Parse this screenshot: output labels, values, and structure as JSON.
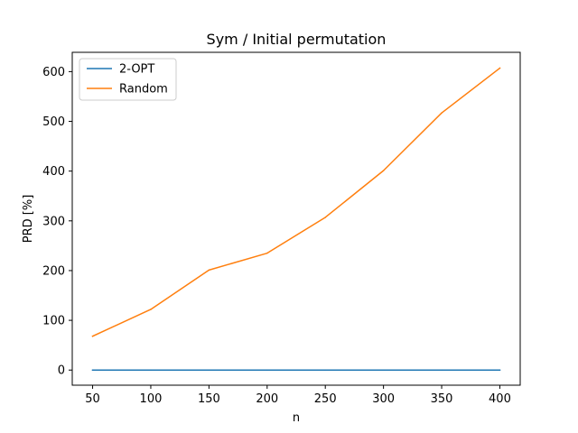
{
  "chart_data": {
    "type": "line",
    "title": "Sym / Initial permutation",
    "xlabel": "n",
    "ylabel": "PRD [%]",
    "x": [
      50,
      100,
      150,
      200,
      250,
      300,
      350,
      400
    ],
    "xticks": [
      "50",
      "100",
      "150",
      "200",
      "250",
      "300",
      "350",
      "400"
    ],
    "yticks": [
      "0",
      "100",
      "200",
      "300",
      "400",
      "500",
      "600"
    ],
    "xlim": [
      32.5,
      417.5
    ],
    "ylim": [
      -30.4,
      638.8
    ],
    "grid": false,
    "legend_position": "top-left",
    "series": [
      {
        "name": "2-OPT",
        "color": "#1f77b4",
        "values": [
          0,
          0,
          0,
          0,
          0,
          0,
          0,
          0
        ]
      },
      {
        "name": "Random",
        "color": "#ff7f0e",
        "values": [
          68,
          122,
          201,
          235,
          307,
          401,
          517,
          607
        ]
      }
    ]
  }
}
